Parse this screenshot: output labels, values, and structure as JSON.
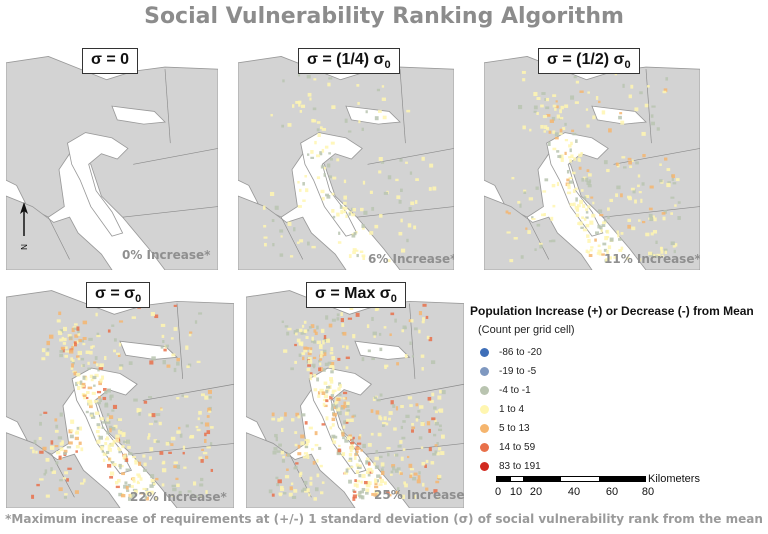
{
  "title": "Social Vulnerability Ranking Algorithm",
  "panels": [
    {
      "label": "σ = 0",
      "sub": "",
      "increase": "0% Increase*",
      "density": 0
    },
    {
      "label": "σ = (1/4) σ",
      "sub": "0",
      "increase": "6% Increase*",
      "density": 1
    },
    {
      "label": "σ = (1/2) σ",
      "sub": "0",
      "increase": "11% Increase*",
      "density": 2
    },
    {
      "label": "σ = σ",
      "sub": "0",
      "increase": "22% Increase*",
      "density": 3
    },
    {
      "label": "σ = Max σ",
      "sub": "0",
      "increase": "25% Increase*",
      "density": 4
    }
  ],
  "north_arrow": "N",
  "legend": {
    "title": "Population Increase (+) or Decrease (-) from Mean",
    "subtitle": "(Count per grid cell)",
    "items": [
      {
        "label": "-86 to -20",
        "color": "#3f6fb8"
      },
      {
        "label": "-19 to -5",
        "color": "#7f98c0"
      },
      {
        "label": "-4 to -1",
        "color": "#b9c4b0"
      },
      {
        "label": "1 to 4",
        "color": "#fff6b0"
      },
      {
        "label": "5 to 13",
        "color": "#f5b56e"
      },
      {
        "label": "14 to 59",
        "color": "#e8704a"
      },
      {
        "label": "83 to 191",
        "color": "#d12a20"
      }
    ]
  },
  "scale_bar": {
    "unit": "Kilometers",
    "ticks": [
      "0",
      "10",
      "20",
      "40",
      "60",
      "80"
    ]
  },
  "footnote": "*Maximum increase of requirements at (+/-) 1 standard deviation (σ) of social vulnerability rank from the mean"
}
